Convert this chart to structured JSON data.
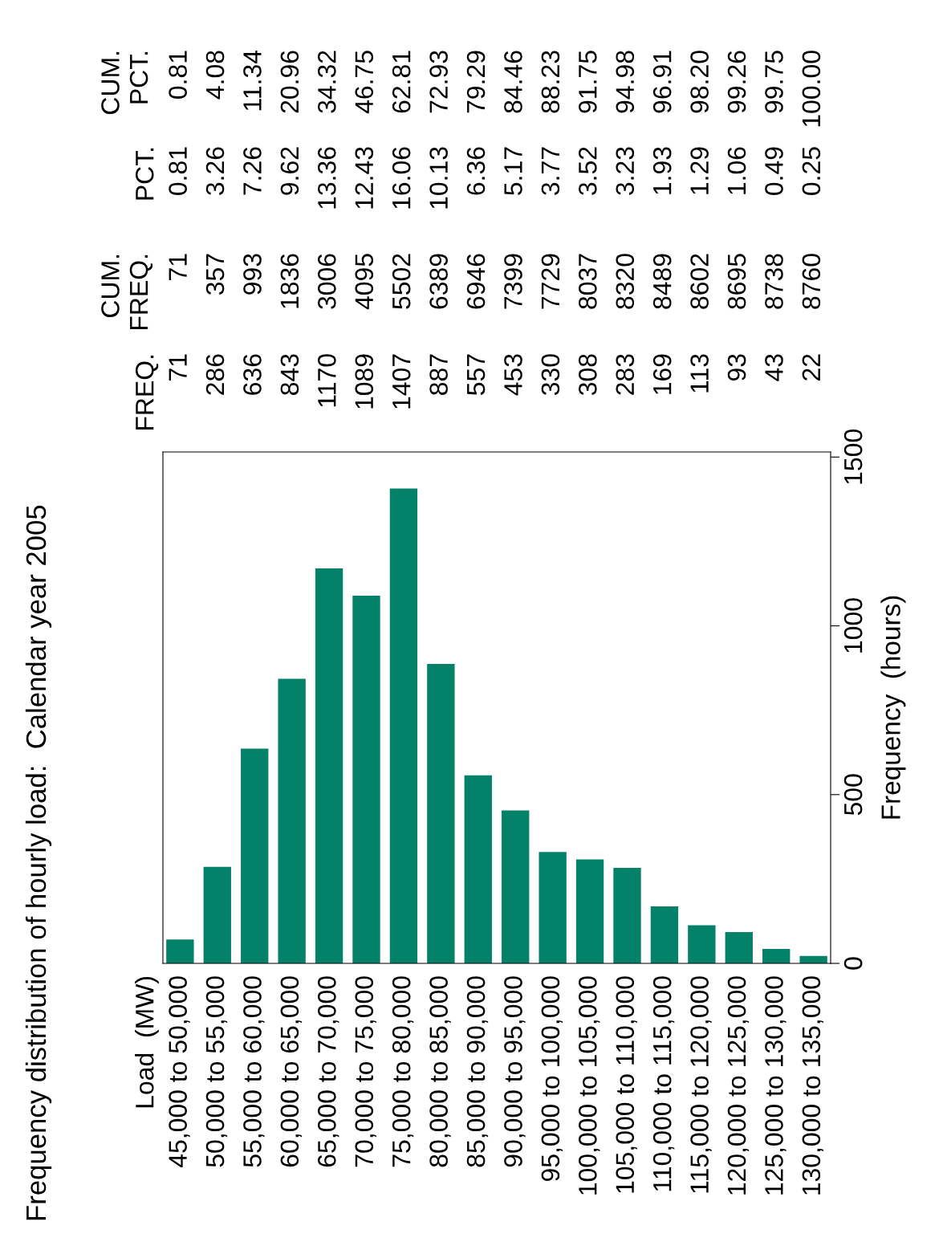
{
  "chart_data": {
    "type": "bar",
    "title": "Frequency distribution of hourly load:  Calendar year 2005",
    "ylabel": "Frequency  (hours)",
    "categories": [
      "45,000 to 50,000",
      "50,000 to 55,000",
      "55,000 to 60,000",
      "60,000 to 65,000",
      "65,000 to 70,000",
      "70,000 to 75,000",
      "75,000 to 80,000",
      "80,000 to 85,000",
      "85,000 to 90,000",
      "90,000 to 95,000",
      "95,000 to 100,000",
      "100,000 to 105,000",
      "105,000 to 110,000",
      "110,000 to 115,000",
      "115,000 to 120,000",
      "120,000 to 125,000",
      "125,000 to 130,000",
      "130,000 to 135,000"
    ],
    "values": [
      71,
      286,
      636,
      843,
      1170,
      1089,
      1407,
      887,
      557,
      453,
      330,
      308,
      283,
      169,
      113,
      93,
      43,
      22
    ],
    "color": "#048269",
    "ylim": [
      0,
      1515
    ],
    "yticks": [
      0,
      500,
      1000,
      1500
    ],
    "grid": false,
    "annotations": [
      "Load  (MW)",
      "FREQ.",
      "CUM.\nFREQ.",
      "PCT.",
      "CUM.\nPCT.",
      "71",
      "286",
      "636",
      "843",
      "1170",
      "1089",
      "1407",
      "887",
      "557",
      "453",
      "330",
      "308",
      "283",
      "169",
      "113",
      "93",
      "43",
      "22",
      "71",
      "357",
      "993",
      "1836",
      "3006",
      "4095",
      "5502",
      "6389",
      "6946",
      "7399",
      "7729",
      "8037",
      "8320",
      "8489",
      "8602",
      "8695",
      "8738",
      "8760",
      "0.81",
      "3.26",
      "7.26",
      "9.62",
      "13.36",
      "12.43",
      "16.06",
      "10.13",
      "6.36",
      "5.17",
      "3.77",
      "3.52",
      "3.23",
      "1.93",
      "1.29",
      "1.06",
      "0.49",
      "0.25",
      "0.81",
      "4.08",
      "11.34",
      "20.96",
      "34.32",
      "46.75",
      "62.81",
      "72.93",
      "79.29",
      "84.46",
      "88.23",
      "91.75",
      "94.98",
      "96.91",
      "98.20",
      "99.26",
      "99.75",
      "100.00"
    ]
  }
}
